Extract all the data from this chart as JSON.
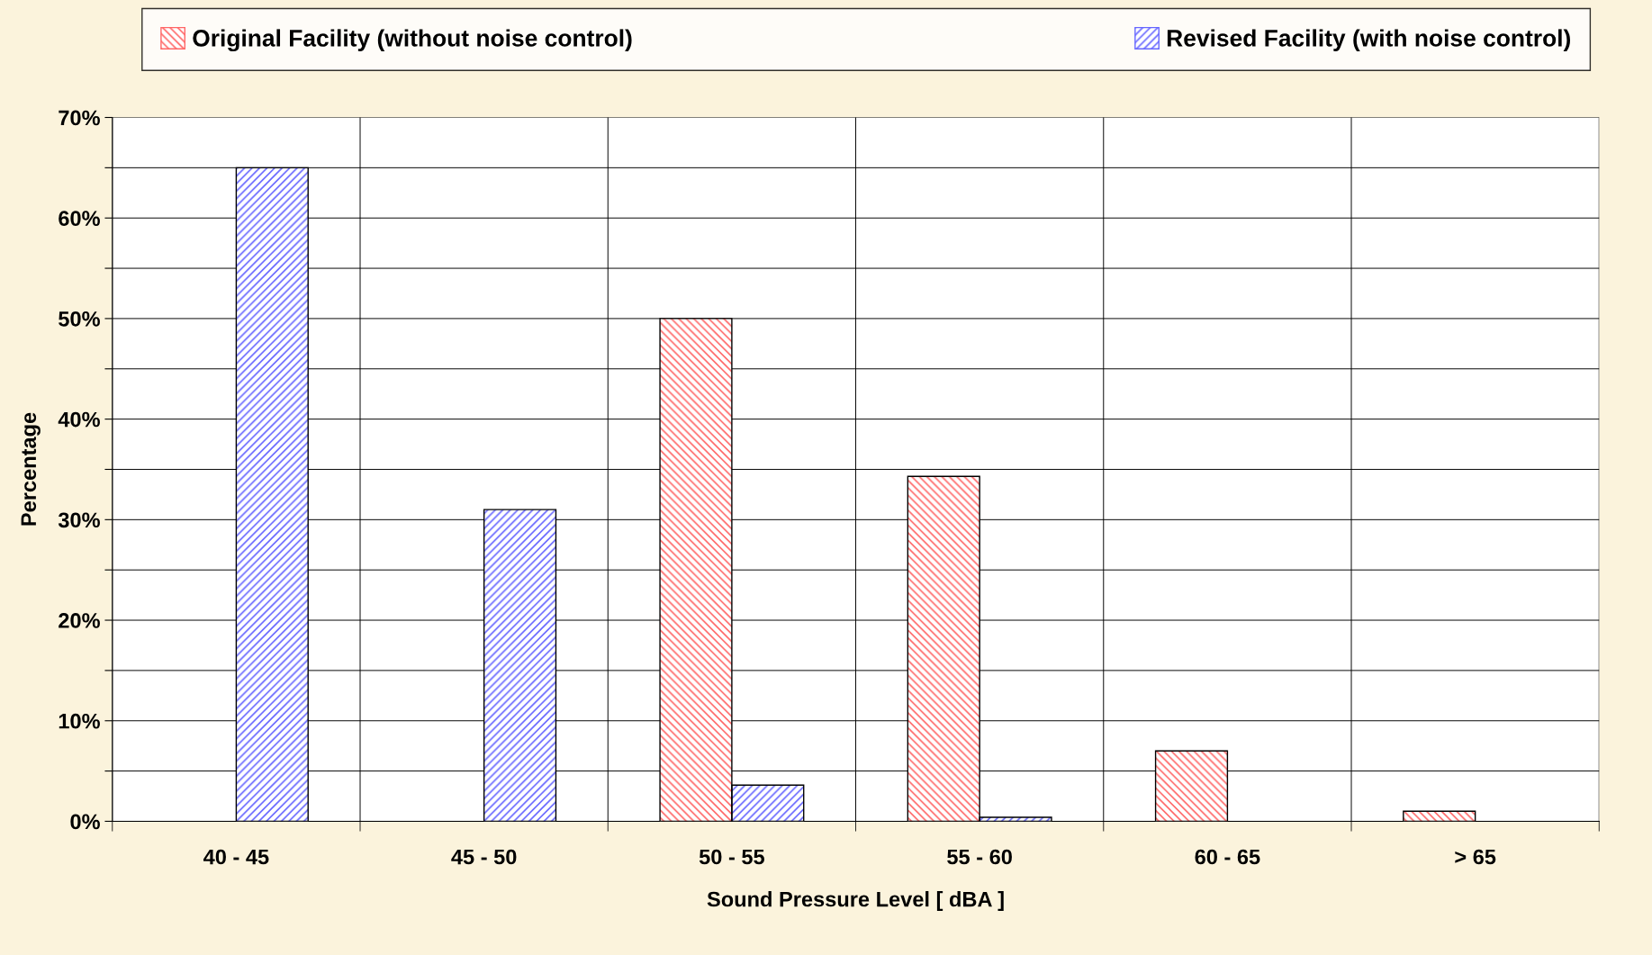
{
  "chart_data": {
    "type": "bar",
    "xlabel": "Sound Pressure Level [ dBA ]",
    "ylabel": "Percentage",
    "categories": [
      "40 - 45",
      "45 - 50",
      "50 - 55",
      "55 - 60",
      "60 - 65",
      "> 65"
    ],
    "series": [
      {
        "name": "Original Facility (without noise control)",
        "color": "#ff6666",
        "values": [
          null,
          null,
          50,
          34.3,
          7,
          1
        ]
      },
      {
        "name": "Revised Facility (with noise control)",
        "color": "#6666ff",
        "values": [
          65,
          31,
          3.6,
          0.4,
          null,
          null
        ]
      }
    ],
    "ylim": [
      0,
      70
    ],
    "yticks": [
      {
        "value": 0,
        "label": "0%"
      },
      {
        "value": 5,
        "label": null
      },
      {
        "value": 10,
        "label": "10%"
      },
      {
        "value": 15,
        "label": null
      },
      {
        "value": 20,
        "label": "20%"
      },
      {
        "value": 25,
        "label": null
      },
      {
        "value": 30,
        "label": "30%"
      },
      {
        "value": 35,
        "label": null
      },
      {
        "value": 40,
        "label": "40%"
      },
      {
        "value": 45,
        "label": null
      },
      {
        "value": 50,
        "label": "50%"
      },
      {
        "value": 55,
        "label": null
      },
      {
        "value": 60,
        "label": "60%"
      },
      {
        "value": 65,
        "label": null
      },
      {
        "value": 70,
        "label": "70%"
      }
    ],
    "grid": true,
    "legend": "top"
  }
}
